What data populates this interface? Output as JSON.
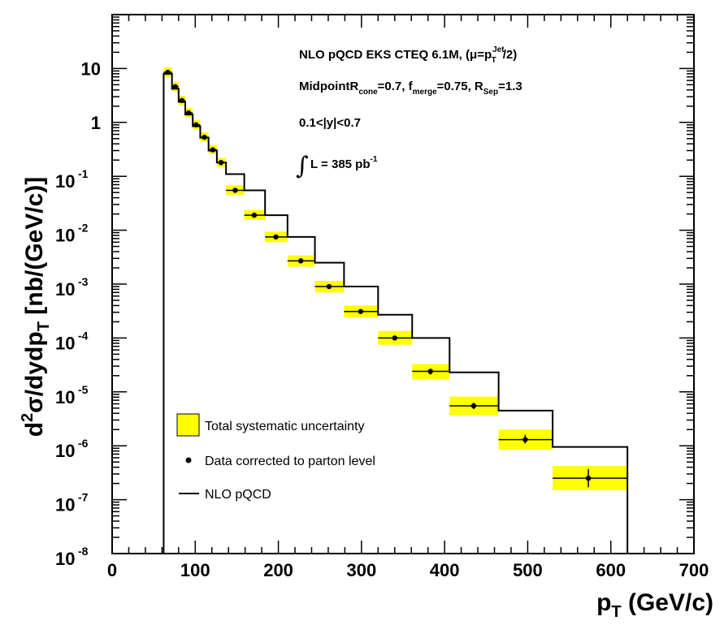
{
  "chart_data": {
    "type": "line",
    "y_scale": "log",
    "xlim": [
      0,
      700
    ],
    "ylim": [
      1e-08,
      100
    ],
    "x_ticks": [
      "0",
      "100",
      "200",
      "300",
      "400",
      "500",
      "600",
      "700"
    ],
    "x_tick_values": [
      0,
      100,
      200,
      300,
      400,
      500,
      600,
      700
    ],
    "y_ticks": [
      {
        "exp": "-8",
        "value": 1e-08
      },
      {
        "exp": "-7",
        "value": 1e-07
      },
      {
        "exp": "-6",
        "value": 1e-06
      },
      {
        "exp": "-5",
        "value": 1e-05
      },
      {
        "exp": "-4",
        "value": 0.0001
      },
      {
        "exp": "-3",
        "value": 0.001
      },
      {
        "exp": "-2",
        "value": 0.01
      },
      {
        "exp": "-1",
        "value": 0.1
      },
      {
        "exp": "",
        "value": 1,
        "plain": "1"
      },
      {
        "exp": "",
        "value": 10,
        "plain": "10"
      }
    ],
    "xlabel": {
      "main": "p",
      "sub": "T",
      "unit": " (GeV/c)"
    },
    "ylabel": {
      "d": "d",
      "sup": "2",
      "sigma": "σ/dydp",
      "sub": "T",
      "unit": " [nb/(GeV/c)]"
    },
    "annotations": {
      "line1": {
        "text": "NLO pQCD EKS CTEQ 6.1M, (μ=p",
        "sup": "Jet",
        "sub": "T",
        "tail": "/2)"
      },
      "line2": {
        "a": "MidpointR",
        "sub1": "cone",
        "b": "=0.7, f",
        "sub2": "merge",
        "c": "=0.75, R",
        "sub3": "Sep",
        "d": "=1.3"
      },
      "line3": "0.1<|y|<0.7",
      "line4": {
        "int": "∫",
        "text": "L = 385 pb",
        "sup": "-1"
      }
    },
    "legend": {
      "placement": "bottom-left",
      "items": [
        {
          "label": "Total systematic uncertainty",
          "kind": "box"
        },
        {
          "label": "Data corrected to parton level",
          "kind": "marker"
        },
        {
          "label": "NLO pQCD",
          "kind": "line"
        }
      ]
    },
    "colors": {
      "band": "#ffff00",
      "line": "#000000"
    },
    "series": [
      {
        "name": "NLO pQCD",
        "bins": [
          {
            "x0": 62,
            "x1": 72,
            "y": 8.0
          },
          {
            "x0": 72,
            "x1": 80,
            "y": 4.2
          },
          {
            "x0": 80,
            "x1": 88,
            "y": 2.4
          },
          {
            "x0": 88,
            "x1": 97,
            "y": 1.4
          },
          {
            "x0": 97,
            "x1": 106,
            "y": 0.85
          },
          {
            "x0": 106,
            "x1": 116,
            "y": 0.52
          },
          {
            "x0": 116,
            "x1": 126,
            "y": 0.3
          },
          {
            "x0": 126,
            "x1": 137,
            "y": 0.18
          },
          {
            "x0": 137,
            "x1": 159,
            "y": 0.11
          },
          {
            "x0": 159,
            "x1": 184,
            "y": 0.055
          },
          {
            "x0": 184,
            "x1": 211,
            "y": 0.019
          },
          {
            "x0": 211,
            "x1": 244,
            "y": 0.0075
          },
          {
            "x0": 244,
            "x1": 279,
            "y": 0.0025
          },
          {
            "x0": 279,
            "x1": 320,
            "y": 0.0009
          },
          {
            "x0": 320,
            "x1": 361,
            "y": 0.00027
          },
          {
            "x0": 361,
            "x1": 406,
            "y": 0.0001
          },
          {
            "x0": 406,
            "x1": 465,
            "y": 2.3e-05
          },
          {
            "x0": 465,
            "x1": 530,
            "y": 4.5e-06
          },
          {
            "x0": 530,
            "x1": 620,
            "y": 9.5e-07
          },
          {
            "x0": 620,
            "x1": 620,
            "y": 1.1e-07
          }
        ],
        "start": {
          "x": 62,
          "y": 1e-08
        },
        "end": {
          "x": 620,
          "y": 1e-08
        }
      },
      {
        "name": "Data corrected to parton level",
        "points": [
          {
            "x": 67,
            "y": 8.5,
            "band_lo": 7.0,
            "band_hi": 10.5
          },
          {
            "x": 76,
            "y": 4.6,
            "band_lo": 3.8,
            "band_hi": 5.6
          },
          {
            "x": 84,
            "y": 2.55,
            "band_lo": 2.1,
            "band_hi": 3.1
          },
          {
            "x": 92,
            "y": 1.5,
            "band_lo": 1.25,
            "band_hi": 1.85
          },
          {
            "x": 101,
            "y": 0.9,
            "band_lo": 0.75,
            "band_hi": 1.1
          },
          {
            "x": 111,
            "y": 0.53,
            "band_lo": 0.44,
            "band_hi": 0.65
          },
          {
            "x": 121,
            "y": 0.31,
            "band_lo": 0.26,
            "band_hi": 0.38
          },
          {
            "x": 131,
            "y": 0.18,
            "band_lo": 0.15,
            "band_hi": 0.22
          },
          {
            "x": 148,
            "y": 0.055,
            "band_lo": 0.045,
            "band_hi": 0.068
          },
          {
            "x": 171,
            "y": 0.019,
            "band_lo": 0.0155,
            "band_hi": 0.0235
          },
          {
            "x": 197,
            "y": 0.0075,
            "band_lo": 0.006,
            "band_hi": 0.0094
          },
          {
            "x": 227,
            "y": 0.0027,
            "band_lo": 0.0021,
            "band_hi": 0.0034
          },
          {
            "x": 261,
            "y": 0.0009,
            "band_lo": 0.0007,
            "band_hi": 0.00115
          },
          {
            "x": 299,
            "y": 0.00031,
            "band_lo": 0.00024,
            "band_hi": 0.0004
          },
          {
            "x": 340,
            "y": 0.0001,
            "band_lo": 7.5e-05,
            "band_hi": 0.000135
          },
          {
            "x": 383,
            "y": 2.4e-05,
            "band_lo": 1.7e-05,
            "band_hi": 3.3e-05,
            "err_lo": 2.1e-05,
            "err_hi": 2.7e-05
          },
          {
            "x": 435,
            "y": 5.5e-06,
            "band_lo": 3.7e-06,
            "band_hi": 8.2e-06,
            "err_lo": 4.8e-06,
            "err_hi": 6.3e-06
          },
          {
            "x": 497,
            "y": 1.3e-06,
            "band_lo": 8.5e-07,
            "band_hi": 2e-06,
            "err_lo": 1.1e-06,
            "err_hi": 1.6e-06
          },
          {
            "x": 573,
            "y": 2.5e-07,
            "band_lo": 1.5e-07,
            "band_hi": 4.2e-07,
            "err_lo": 1.7e-07,
            "err_hi": 3.7e-07
          }
        ]
      }
    ]
  }
}
